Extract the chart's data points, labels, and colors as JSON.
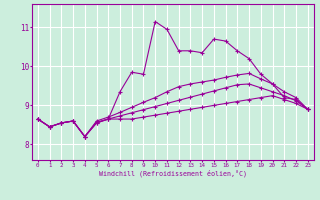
{
  "xlabel": "Windchill (Refroidissement éolien,°C)",
  "x_ticks": [
    0,
    1,
    2,
    3,
    4,
    5,
    6,
    7,
    8,
    9,
    10,
    11,
    12,
    13,
    14,
    15,
    16,
    17,
    18,
    19,
    20,
    21,
    22,
    23
  ],
  "y_ticks": [
    8,
    9,
    10,
    11
  ],
  "ylim": [
    7.6,
    11.6
  ],
  "xlim": [
    -0.5,
    23.5
  ],
  "bg_color": "#cceedd",
  "line_color": "#990099",
  "grid_color": "#ffffff",
  "lines": [
    [
      8.65,
      8.45,
      8.55,
      8.6,
      8.2,
      8.55,
      8.65,
      9.35,
      9.85,
      9.8,
      11.15,
      10.95,
      10.4,
      10.4,
      10.35,
      10.7,
      10.65,
      10.4,
      10.2,
      9.8,
      9.55,
      9.2,
      9.15,
      8.9
    ],
    [
      8.65,
      8.45,
      8.55,
      8.6,
      8.2,
      8.55,
      8.65,
      8.65,
      8.65,
      8.7,
      8.75,
      8.8,
      8.85,
      8.9,
      8.95,
      9.0,
      9.05,
      9.1,
      9.15,
      9.2,
      9.25,
      9.15,
      9.05,
      8.9
    ],
    [
      8.65,
      8.45,
      8.55,
      8.6,
      8.2,
      8.6,
      8.7,
      8.82,
      8.95,
      9.08,
      9.2,
      9.35,
      9.48,
      9.55,
      9.6,
      9.65,
      9.72,
      9.78,
      9.82,
      9.68,
      9.55,
      9.35,
      9.2,
      8.9
    ],
    [
      8.65,
      8.45,
      8.55,
      8.6,
      8.2,
      8.57,
      8.65,
      8.73,
      8.81,
      8.89,
      8.97,
      9.05,
      9.13,
      9.21,
      9.29,
      9.37,
      9.45,
      9.53,
      9.55,
      9.45,
      9.35,
      9.25,
      9.12,
      8.9
    ]
  ]
}
